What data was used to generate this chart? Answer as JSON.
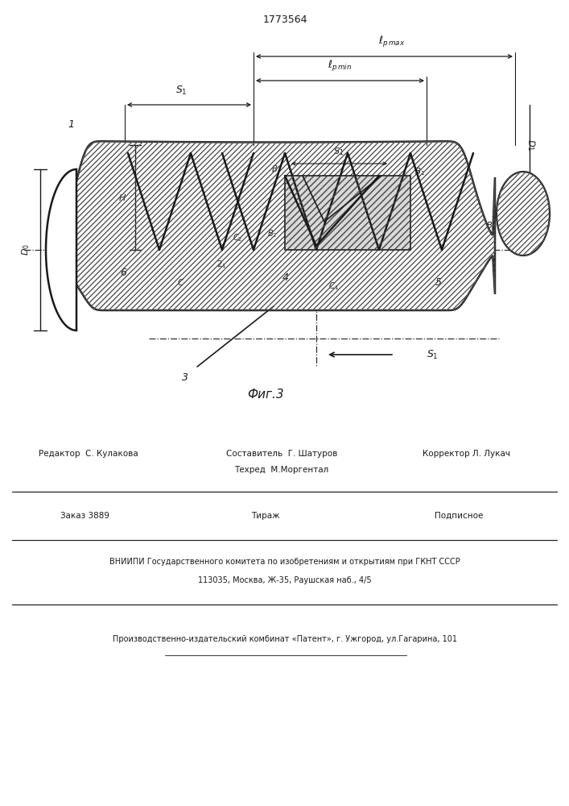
{
  "title": "1773564",
  "fig_label": "Фиг.3",
  "line_color": "#1a1a1a",
  "figsize": [
    7.07,
    10.0
  ],
  "dpi": 100,
  "bottom_text": {
    "line1_left": "Редактор  С. Кулакова",
    "line1_center1": "Составитель  Г. Шатуров",
    "line1_center2": "Техред  М.Моргентал",
    "line1_right": "Корректор Л. Лукач",
    "line2_left": "Заказ 3889",
    "line2_center": "Тираж",
    "line2_right": "Подписное",
    "line3": "ВНИИПИ Государственного комитета по изобретениям и открытиям при ГКНТ СССР",
    "line4": "113035, Москва, Ж-35, Раушская наб., 4/5",
    "line5": "Производственно-издательский комбинат «Патент», г. Ужгород, ул.Гагарина, 101"
  }
}
